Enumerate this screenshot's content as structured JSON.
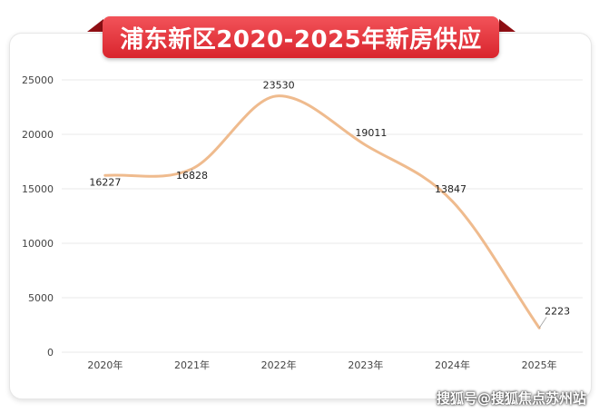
{
  "title": "浦东新区2020-2025年新房供应",
  "watermark": "搜狐号@搜狐焦点苏州站",
  "colors": {
    "line": "#efbb8e",
    "banner": "#dd2a31",
    "grid": "#e8e8e8"
  },
  "chart_data": {
    "type": "line",
    "categories": [
      "2020年",
      "2021年",
      "2022年",
      "2023年",
      "2024年",
      "2025年"
    ],
    "values": [
      16227,
      16828,
      23530,
      19011,
      13847,
      2223
    ],
    "data_labels": [
      "16227",
      "16828",
      "23530",
      "19011",
      "13847",
      "2223"
    ],
    "ylim": [
      0,
      25000
    ],
    "yticks": [
      "0",
      "5000",
      "10000",
      "15000",
      "20000",
      "25000"
    ],
    "grid": true,
    "smooth": true
  }
}
